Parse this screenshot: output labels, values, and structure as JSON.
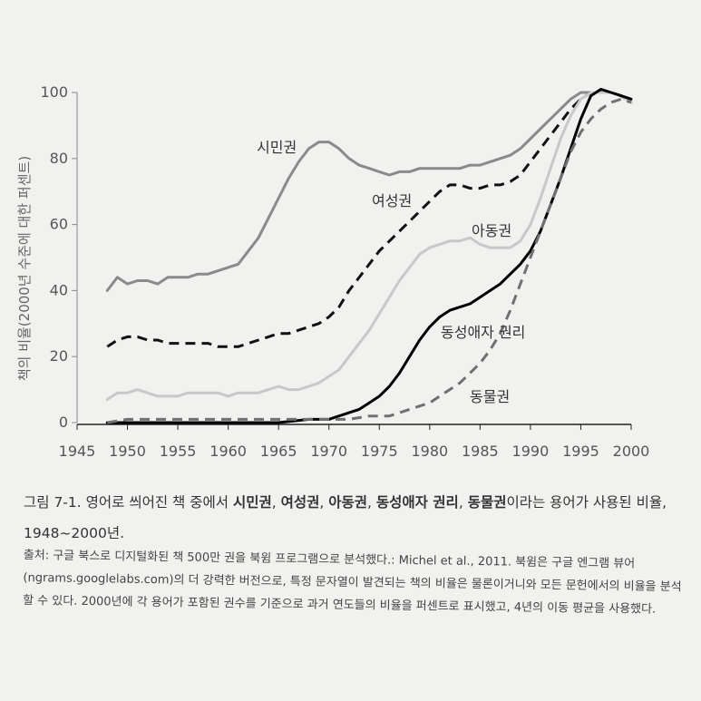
{
  "chart_data": {
    "type": "line",
    "ylabel": "책의 비율(2000년 수준에 대한 퍼센트)",
    "xlim": [
      1945,
      2000
    ],
    "ylim": [
      0,
      100
    ],
    "x_ticks": [
      "1945",
      "1950",
      "1955",
      "1960",
      "1965",
      "1970",
      "1975",
      "1980",
      "1985",
      "1990",
      "1995",
      "2000"
    ],
    "y_ticks": [
      "0",
      "20",
      "40",
      "60",
      "80",
      "100"
    ],
    "series": [
      {
        "name": "시민권",
        "color": "#8a8a8a",
        "style": "solid",
        "x": [
          1948,
          1949,
          1950,
          1951,
          1952,
          1953,
          1954,
          1955,
          1956,
          1957,
          1958,
          1959,
          1960,
          1961,
          1962,
          1963,
          1964,
          1965,
          1966,
          1967,
          1968,
          1969,
          1970,
          1971,
          1972,
          1973,
          1974,
          1975,
          1976,
          1977,
          1978,
          1979,
          1980,
          1981,
          1982,
          1983,
          1984,
          1985,
          1986,
          1987,
          1988,
          1989,
          1990,
          1991,
          1992,
          1993,
          1994,
          1995,
          1996,
          1997,
          1998,
          1999,
          2000
        ],
        "values": [
          40,
          44,
          42,
          43,
          43,
          42,
          44,
          44,
          44,
          45,
          45,
          46,
          47,
          48,
          52,
          56,
          62,
          68,
          74,
          79,
          83,
          85,
          85,
          83,
          80,
          78,
          77,
          76,
          75,
          76,
          76,
          77,
          77,
          77,
          77,
          77,
          78,
          78,
          79,
          80,
          81,
          83,
          86,
          89,
          92,
          95,
          98,
          100,
          100,
          100,
          100,
          99,
          97
        ]
      },
      {
        "name": "여성권",
        "color": "#111111",
        "style": "dashed",
        "x": [
          1948,
          1949,
          1950,
          1951,
          1952,
          1953,
          1954,
          1955,
          1956,
          1957,
          1958,
          1959,
          1960,
          1961,
          1962,
          1963,
          1964,
          1965,
          1966,
          1967,
          1968,
          1969,
          1970,
          1971,
          1972,
          1973,
          1974,
          1975,
          1976,
          1977,
          1978,
          1979,
          1980,
          1981,
          1982,
          1983,
          1984,
          1985,
          1986,
          1987,
          1988,
          1989,
          1990,
          1991,
          1992,
          1993,
          1994,
          1995,
          1996,
          1997,
          1998,
          1999,
          2000
        ],
        "values": [
          23,
          25,
          26,
          26,
          25,
          25,
          24,
          24,
          24,
          24,
          24,
          23,
          23,
          23,
          24,
          25,
          26,
          27,
          27,
          28,
          29,
          30,
          32,
          35,
          40,
          44,
          48,
          52,
          55,
          58,
          61,
          64,
          67,
          70,
          72,
          72,
          71,
          71,
          72,
          72,
          73,
          75,
          79,
          83,
          87,
          91,
          95,
          98,
          100,
          100,
          100,
          99,
          97
        ]
      },
      {
        "name": "아동권",
        "color": "#c8c8c8",
        "style": "solid",
        "x": [
          1948,
          1949,
          1950,
          1951,
          1952,
          1953,
          1954,
          1955,
          1956,
          1957,
          1958,
          1959,
          1960,
          1961,
          1962,
          1963,
          1964,
          1965,
          1966,
          1967,
          1968,
          1969,
          1970,
          1971,
          1972,
          1973,
          1974,
          1975,
          1976,
          1977,
          1978,
          1979,
          1980,
          1981,
          1982,
          1983,
          1984,
          1985,
          1986,
          1987,
          1988,
          1989,
          1990,
          1991,
          1992,
          1993,
          1994,
          1995,
          1996,
          1997,
          1998,
          1999,
          2000
        ],
        "values": [
          7,
          9,
          9,
          10,
          9,
          8,
          8,
          8,
          9,
          9,
          9,
          9,
          8,
          9,
          9,
          9,
          10,
          11,
          10,
          10,
          11,
          12,
          14,
          16,
          20,
          24,
          28,
          33,
          38,
          43,
          47,
          51,
          53,
          54,
          55,
          55,
          56,
          54,
          53,
          53,
          53,
          55,
          60,
          68,
          77,
          86,
          93,
          98,
          100,
          100,
          100,
          99,
          97
        ]
      },
      {
        "name": "동성애자 권리",
        "color": "#000000",
        "style": "solid",
        "x": [
          1948,
          1950,
          1955,
          1960,
          1965,
          1968,
          1970,
          1971,
          1972,
          1973,
          1974,
          1975,
          1976,
          1977,
          1978,
          1979,
          1980,
          1981,
          1982,
          1983,
          1984,
          1985,
          1986,
          1987,
          1988,
          1989,
          1990,
          1991,
          1992,
          1993,
          1994,
          1995,
          1996,
          1997,
          1998,
          1999,
          2000
        ],
        "values": [
          0,
          0,
          0,
          0,
          0,
          1,
          1,
          2,
          3,
          4,
          6,
          8,
          11,
          15,
          20,
          25,
          29,
          32,
          34,
          35,
          36,
          38,
          40,
          42,
          45,
          48,
          52,
          58,
          66,
          74,
          83,
          92,
          99,
          101,
          100,
          99,
          98
        ]
      },
      {
        "name": "동물권",
        "color": "#707070",
        "style": "dashed",
        "x": [
          1948,
          1950,
          1955,
          1960,
          1965,
          1970,
          1972,
          1974,
          1976,
          1977,
          1978,
          1979,
          1980,
          1981,
          1982,
          1983,
          1984,
          1985,
          1986,
          1987,
          1988,
          1989,
          1990,
          1991,
          1992,
          1993,
          1994,
          1995,
          1996,
          1997,
          1998,
          1999,
          2000
        ],
        "values": [
          0,
          1,
          1,
          1,
          1,
          1,
          1,
          2,
          2,
          3,
          4,
          5,
          6,
          8,
          10,
          12,
          15,
          18,
          22,
          27,
          34,
          42,
          50,
          58,
          66,
          74,
          82,
          88,
          92,
          95,
          97,
          98,
          97
        ]
      }
    ]
  },
  "caption": {
    "prefix": "그림 7-1. 영어로 씌어진 책 중에서 ",
    "t1": "시민권",
    "sep1": ", ",
    "t2": "여성권",
    "sep2": ", ",
    "t3": "아동권",
    "sep3": ", ",
    "t4": "동성애자 권리",
    "sep4": ", ",
    "t5": "동물권",
    "suffix": "이라는 용어가 사용된 비율, 1948~2000년."
  },
  "source_text": "출처: 구글 북스로 디지털화된 책 500만 권을 북윔 프로그램으로 분석했다.: Michel et al., 2011. 북윔은 구글 엔그램 뷰어(ngrams.googlelabs.com)의 더 강력한 버전으로, 특정 문자열이 발견되는 책의 비율은 물론이거니와 모든 문헌에서의 비율을 분석할 수 있다. 2000년에 각 용어가 포함된 권수를 기준으로 과거 연도들의 비율을 퍼센트로 표시했고, 4년의 이동 평균을 사용했다."
}
